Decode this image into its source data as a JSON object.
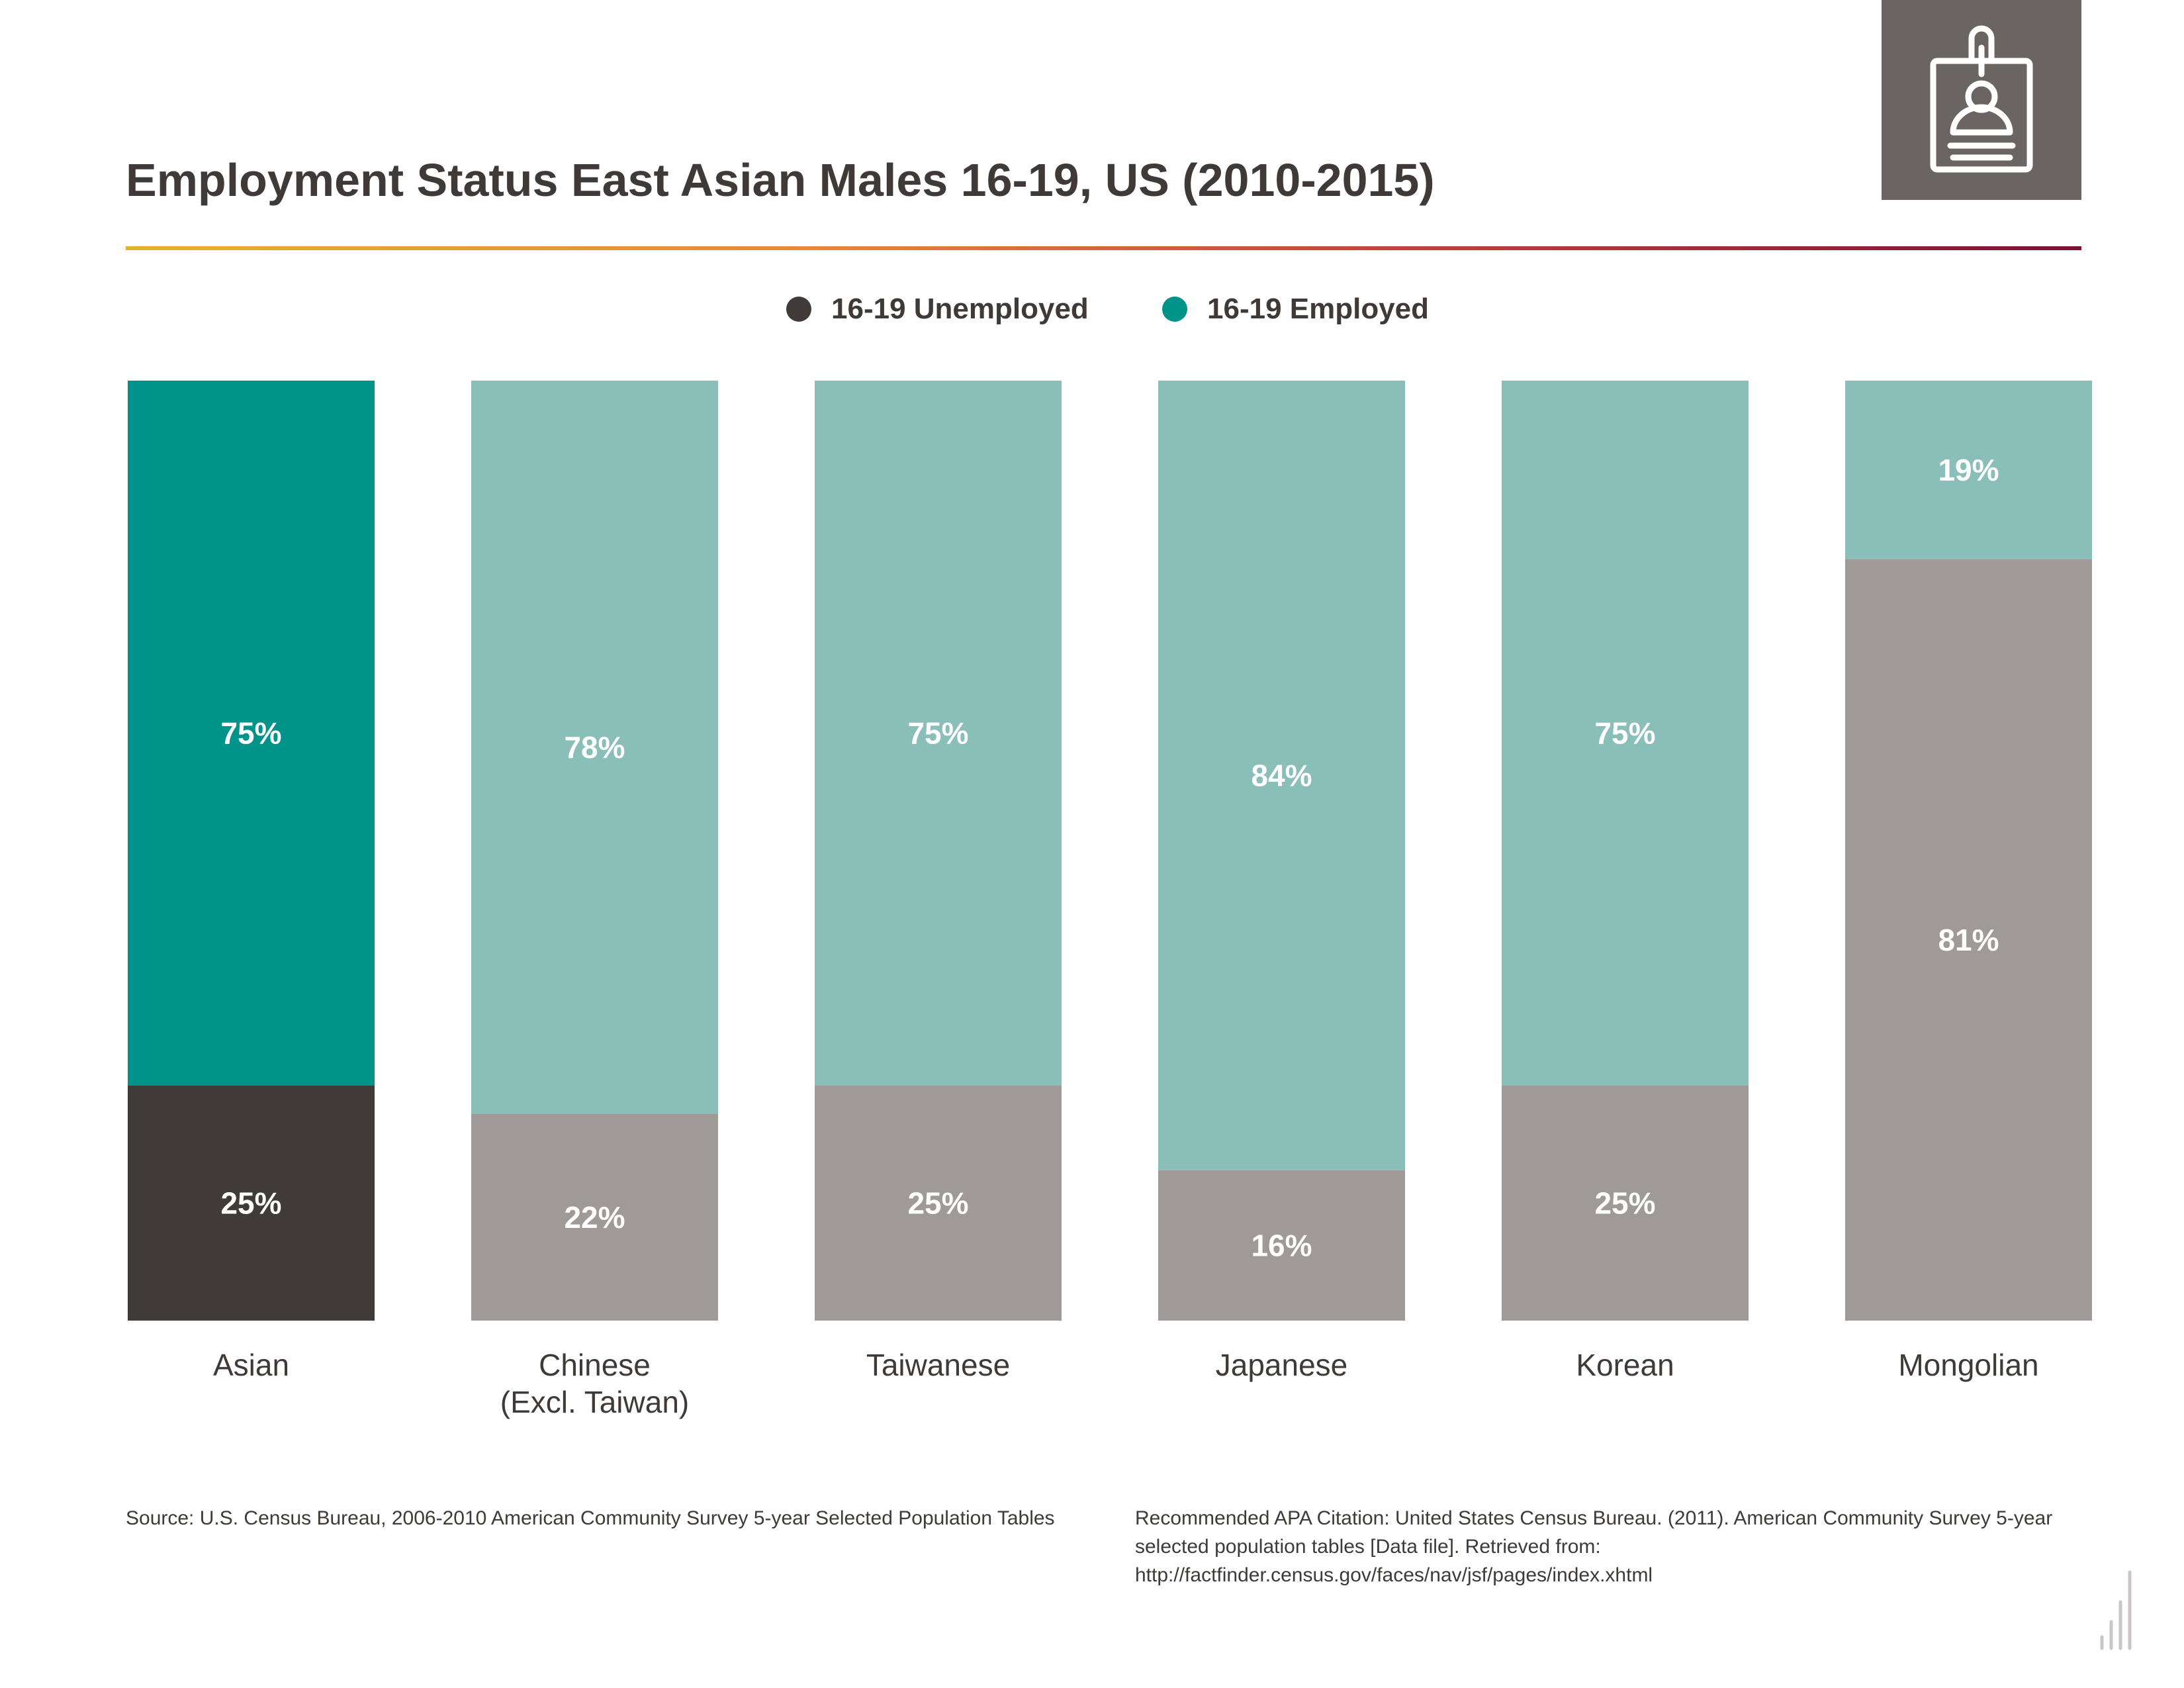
{
  "chart_data": {
    "type": "bar",
    "stacked": true,
    "percent": true,
    "title": "Employment Status East Asian Males 16-19, US (2010-2015)",
    "categories": [
      [
        "Asian"
      ],
      [
        "Chinese",
        "(Excl. Taiwan)"
      ],
      [
        "Taiwanese"
      ],
      [
        "Japanese"
      ],
      [
        "Korean"
      ],
      [
        "Mongolian"
      ]
    ],
    "series": [
      {
        "name": "16-19 Unemployed",
        "values": [
          25,
          22,
          25,
          16,
          25,
          81
        ],
        "labels": [
          "25%",
          "22%",
          "25%",
          "16%",
          "25%",
          "81%"
        ]
      },
      {
        "name": "16-19 Employed",
        "values": [
          75,
          78,
          75,
          84,
          75,
          19
        ],
        "labels": [
          "75%",
          "78%",
          "75%",
          "84%",
          "75%",
          "19%"
        ]
      }
    ],
    "ylim": [
      0,
      100
    ],
    "legend_position": "top-center",
    "grid": false
  },
  "legend": {
    "unemployed_label": "16-19 Unemployed",
    "employed_label": "16-19 Employed"
  },
  "colors": {
    "title_text": "#3f3a37",
    "legend_unemployed": "#403b38",
    "legend_employed": "#00938a",
    "highlight_employed": "#00938a",
    "highlight_unemployed": "#403b38",
    "muted_employed": "#8abeb8",
    "muted_unemployed": "#9f9a98",
    "icon_background": "#6a6462"
  },
  "icons": {
    "header_icon": "id-badge-icon",
    "corner_icon": "bar-chart-logo-icon"
  },
  "footer": {
    "source": "Source:  U.S. Census Bureau, 2006-2010 American Community Survey 5-year Selected Population Tables",
    "citation": "Recommended APA Citation: United States Census Bureau. (2011). American Community Survey 5-year selected population tables [Data file]. Retrieved from: http://factfinder.census.gov/faces/nav/jsf/pages/index.xhtml"
  }
}
